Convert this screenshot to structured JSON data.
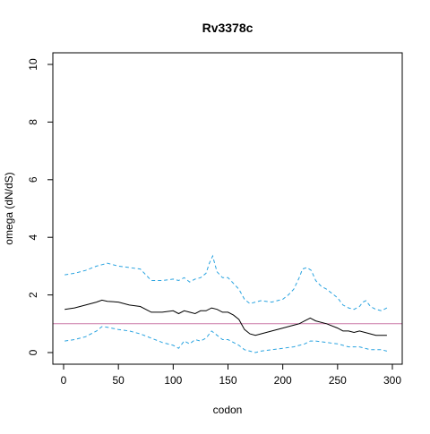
{
  "chart_data": {
    "type": "line",
    "title": "Rv3378c",
    "xlabel": "codon",
    "ylabel": "omega (dN/dS)",
    "xlim": [
      0,
      300
    ],
    "ylim": [
      0,
      10
    ],
    "xticks": [
      0,
      50,
      100,
      150,
      200,
      250,
      300
    ],
    "yticks": [
      0,
      2,
      4,
      6,
      8,
      10
    ],
    "grid": false,
    "reference_line": {
      "y": 1,
      "color": "#cc79a7"
    },
    "series": [
      {
        "style": "solid",
        "color": "#000000",
        "x": [
          1,
          10,
          20,
          30,
          35,
          40,
          50,
          60,
          70,
          80,
          90,
          100,
          105,
          110,
          115,
          120,
          125,
          130,
          135,
          140,
          145,
          150,
          155,
          160,
          165,
          170,
          175,
          180,
          190,
          200,
          210,
          215,
          220,
          225,
          230,
          240,
          250,
          255,
          260,
          265,
          270,
          275,
          280,
          285,
          290,
          295
        ],
        "y": [
          1.5,
          1.55,
          1.65,
          1.75,
          1.82,
          1.78,
          1.75,
          1.65,
          1.6,
          1.4,
          1.4,
          1.45,
          1.35,
          1.45,
          1.4,
          1.35,
          1.45,
          1.45,
          1.55,
          1.5,
          1.4,
          1.4,
          1.3,
          1.15,
          0.8,
          0.65,
          0.6,
          0.65,
          0.75,
          0.85,
          0.95,
          1.0,
          1.1,
          1.2,
          1.1,
          1.0,
          0.85,
          0.75,
          0.75,
          0.7,
          0.75,
          0.7,
          0.65,
          0.6,
          0.6,
          0.6
        ]
      },
      {
        "style": "dashed",
        "color": "#29a3e0",
        "x": [
          1,
          10,
          20,
          30,
          35,
          40,
          50,
          60,
          70,
          75,
          80,
          90,
          100,
          105,
          110,
          115,
          120,
          125,
          130,
          133,
          136,
          140,
          145,
          150,
          155,
          160,
          165,
          170,
          175,
          180,
          190,
          200,
          205,
          210,
          215,
          218,
          222,
          226,
          230,
          235,
          240,
          250,
          255,
          260,
          265,
          270,
          273,
          276,
          280,
          285,
          290,
          295
        ],
        "y": [
          2.7,
          2.75,
          2.85,
          3.0,
          3.05,
          3.1,
          3.0,
          2.95,
          2.9,
          2.7,
          2.5,
          2.5,
          2.55,
          2.5,
          2.6,
          2.45,
          2.55,
          2.6,
          2.75,
          3.1,
          3.35,
          2.8,
          2.6,
          2.6,
          2.4,
          2.2,
          1.85,
          1.7,
          1.75,
          1.8,
          1.75,
          1.85,
          2.0,
          2.2,
          2.6,
          2.9,
          2.95,
          2.85,
          2.5,
          2.3,
          2.2,
          1.9,
          1.65,
          1.55,
          1.5,
          1.6,
          1.75,
          1.8,
          1.6,
          1.5,
          1.45,
          1.55
        ]
      },
      {
        "style": "dashed",
        "color": "#29a3e0",
        "x": [
          1,
          10,
          20,
          30,
          35,
          40,
          50,
          60,
          70,
          80,
          90,
          100,
          105,
          110,
          115,
          120,
          125,
          130,
          135,
          140,
          145,
          150,
          155,
          160,
          165,
          170,
          175,
          180,
          190,
          200,
          210,
          220,
          225,
          230,
          240,
          250,
          255,
          260,
          265,
          270,
          275,
          280,
          285,
          290,
          295
        ],
        "y": [
          0.4,
          0.45,
          0.55,
          0.75,
          0.9,
          0.88,
          0.8,
          0.75,
          0.65,
          0.5,
          0.35,
          0.25,
          0.15,
          0.4,
          0.3,
          0.45,
          0.4,
          0.5,
          0.75,
          0.6,
          0.45,
          0.45,
          0.35,
          0.25,
          0.1,
          0.05,
          0.0,
          0.05,
          0.1,
          0.15,
          0.2,
          0.3,
          0.4,
          0.4,
          0.35,
          0.3,
          0.25,
          0.2,
          0.2,
          0.2,
          0.15,
          0.1,
          0.1,
          0.1,
          0.05
        ]
      }
    ]
  }
}
